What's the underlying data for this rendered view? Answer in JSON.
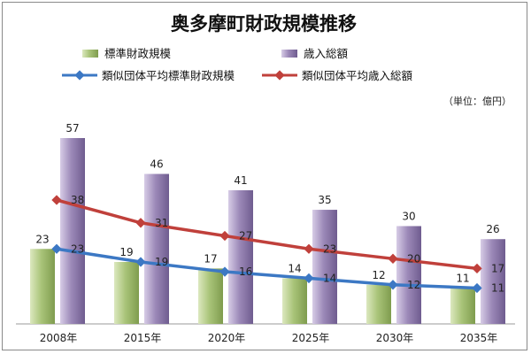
{
  "chart_data": {
    "type": "bar",
    "title": "奥多摩町財政規模推移",
    "unit_label": "（単位：億円）",
    "categories": [
      "2008年",
      "2015年",
      "2020年",
      "2025年",
      "2030年",
      "2035年"
    ],
    "series": [
      {
        "name": "標準財政規模",
        "type": "bar",
        "values": [
          23,
          19,
          17,
          14,
          12,
          11
        ],
        "color": "#9fbd6e"
      },
      {
        "name": "歳入総額",
        "type": "bar",
        "values": [
          57,
          46,
          41,
          35,
          30,
          26
        ],
        "color": "#8e7bab"
      },
      {
        "name": "類似団体平均標準財政規模",
        "type": "line",
        "values": [
          23,
          19,
          16,
          14,
          12,
          11
        ],
        "color": "#3c78c4"
      },
      {
        "name": "類似団体平均歳入総額",
        "type": "line",
        "values": [
          38,
          31,
          27,
          23,
          20,
          17
        ],
        "color": "#c0403b"
      }
    ],
    "ylim": [
      0,
      65
    ],
    "grid": false,
    "legend_position": "top"
  }
}
